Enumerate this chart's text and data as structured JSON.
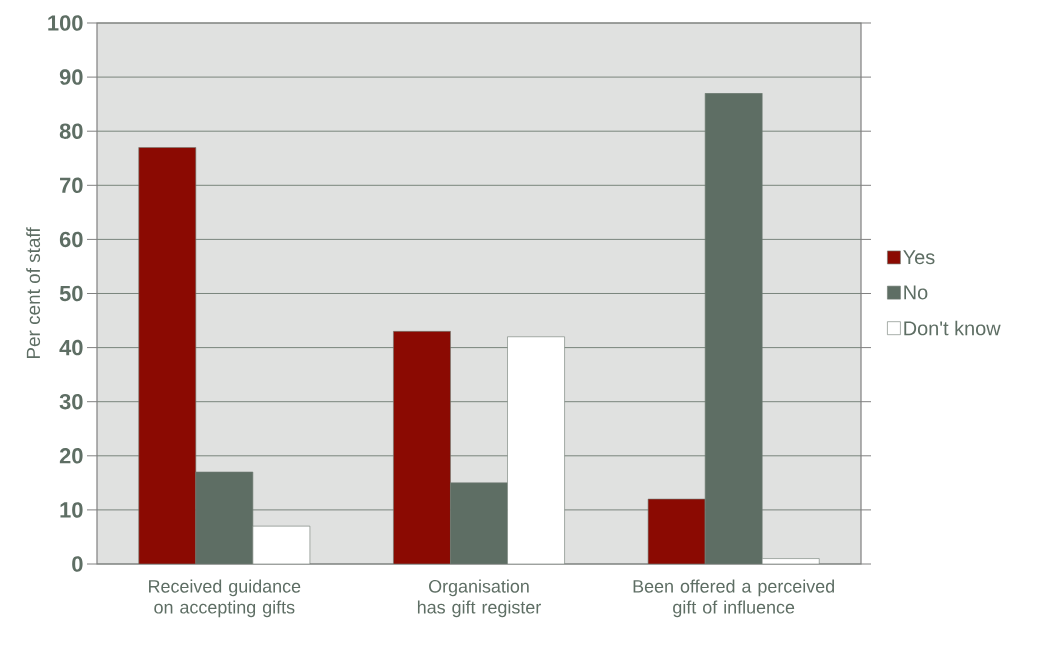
{
  "chart_data": {
    "type": "bar",
    "ylabel": "Per cent of staff",
    "categories": [
      "Received guidance on accepting gifts",
      "Organisation has gift register",
      "Been offered a perceived gift of influence"
    ],
    "series": [
      {
        "name": "Yes",
        "color": "#8b0a02",
        "values": [
          77,
          43,
          12
        ]
      },
      {
        "name": "No",
        "color": "#5e6e64",
        "values": [
          17,
          15,
          87
        ]
      },
      {
        "name": "Don't know",
        "color": "#ffffff",
        "values": [
          7,
          42,
          1
        ]
      }
    ],
    "ylim": [
      0,
      100
    ],
    "yticks": [
      0,
      10,
      20,
      30,
      40,
      50,
      60,
      70,
      80,
      90,
      100
    ],
    "grid": "y",
    "legend": "right"
  }
}
